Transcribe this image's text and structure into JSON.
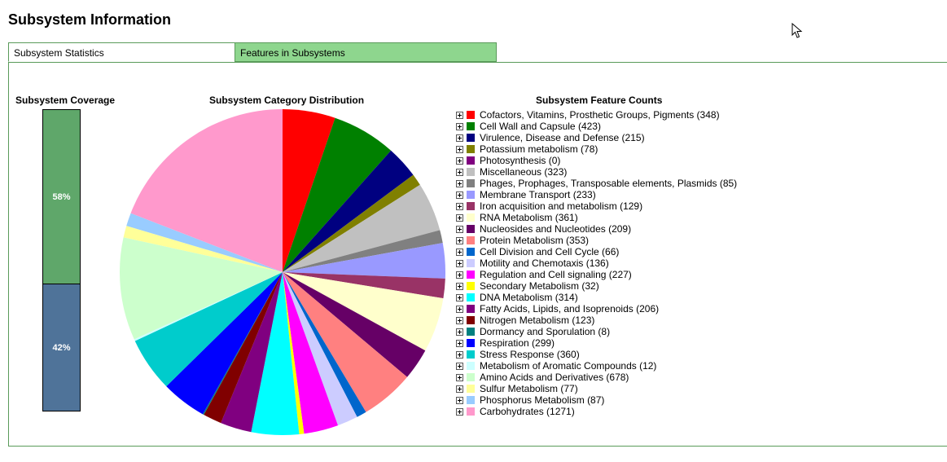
{
  "page": {
    "title": "Subsystem Information"
  },
  "tabs": [
    {
      "label": "Subsystem Statistics",
      "active": true
    },
    {
      "label": "Features in Subsystems",
      "active": false
    }
  ],
  "coverage": {
    "title": "Subsystem Coverage",
    "segments": [
      {
        "label": "58%",
        "value": 58,
        "color": "#5fa76a"
      },
      {
        "label": "42%",
        "value": 42,
        "color": "#4f7399"
      }
    ]
  },
  "distribution": {
    "title": "Subsystem Category Distribution"
  },
  "feature_counts": {
    "title": "Subsystem Feature Counts",
    "items": [
      {
        "label": "Cofactors, Vitamins, Prosthetic Groups, Pigments (348)",
        "name": "Cofactors, Vitamins, Prosthetic Groups, Pigments",
        "count": 348,
        "color": "#ff0000"
      },
      {
        "label": "Cell Wall and Capsule (423)",
        "name": "Cell Wall and Capsule",
        "count": 423,
        "color": "#008000"
      },
      {
        "label": "Virulence, Disease and Defense (215)",
        "name": "Virulence, Disease and Defense",
        "count": 215,
        "color": "#000080"
      },
      {
        "label": "Potassium metabolism (78)",
        "name": "Potassium metabolism",
        "count": 78,
        "color": "#808000"
      },
      {
        "label": "Photosynthesis (0)",
        "name": "Photosynthesis",
        "count": 0,
        "color": "#800080"
      },
      {
        "label": "Miscellaneous (323)",
        "name": "Miscellaneous",
        "count": 323,
        "color": "#c0c0c0"
      },
      {
        "label": "Phages, Prophages, Transposable elements, Plasmids (85)",
        "name": "Phages, Prophages, Transposable elements, Plasmids",
        "count": 85,
        "color": "#808080"
      },
      {
        "label": "Membrane Transport (233)",
        "name": "Membrane Transport",
        "count": 233,
        "color": "#9999ff"
      },
      {
        "label": "Iron acquisition and metabolism (129)",
        "name": "Iron acquisition and metabolism",
        "count": 129,
        "color": "#993366"
      },
      {
        "label": "RNA Metabolism (361)",
        "name": "RNA Metabolism",
        "count": 361,
        "color": "#ffffcc"
      },
      {
        "label": "Nucleosides and Nucleotides (209)",
        "name": "Nucleosides and Nucleotides",
        "count": 209,
        "color": "#660066"
      },
      {
        "label": "Protein Metabolism (353)",
        "name": "Protein Metabolism",
        "count": 353,
        "color": "#ff8080"
      },
      {
        "label": "Cell Division and Cell Cycle (66)",
        "name": "Cell Division and Cell Cycle",
        "count": 66,
        "color": "#0066cc"
      },
      {
        "label": "Motility and Chemotaxis (136)",
        "name": "Motility and Chemotaxis",
        "count": 136,
        "color": "#ccccff"
      },
      {
        "label": "Regulation and Cell signaling (227)",
        "name": "Regulation and Cell signaling",
        "count": 227,
        "color": "#ff00ff"
      },
      {
        "label": "Secondary Metabolism (32)",
        "name": "Secondary Metabolism",
        "count": 32,
        "color": "#ffff00"
      },
      {
        "label": "DNA Metabolism (314)",
        "name": "DNA Metabolism",
        "count": 314,
        "color": "#00ffff"
      },
      {
        "label": "Fatty Acids, Lipids, and Isoprenoids (206)",
        "name": "Fatty Acids, Lipids, and Isoprenoids",
        "count": 206,
        "color": "#800080"
      },
      {
        "label": "Nitrogen Metabolism (123)",
        "name": "Nitrogen Metabolism",
        "count": 123,
        "color": "#800000"
      },
      {
        "label": "Dormancy and Sporulation (8)",
        "name": "Dormancy and Sporulation",
        "count": 8,
        "color": "#008080"
      },
      {
        "label": "Respiration (299)",
        "name": "Respiration",
        "count": 299,
        "color": "#0000ff"
      },
      {
        "label": "Stress Response (360)",
        "name": "Stress Response",
        "count": 360,
        "color": "#00cccc"
      },
      {
        "label": "Metabolism of Aromatic Compounds (12)",
        "name": "Metabolism of Aromatic Compounds",
        "count": 12,
        "color": "#ccffff"
      },
      {
        "label": "Amino Acids and Derivatives (678)",
        "name": "Amino Acids and Derivatives",
        "count": 678,
        "color": "#ccffcc"
      },
      {
        "label": "Sulfur Metabolism (77)",
        "name": "Sulfur Metabolism",
        "count": 77,
        "color": "#ffff99"
      },
      {
        "label": "Phosphorus Metabolism (87)",
        "name": "Phosphorus Metabolism",
        "count": 87,
        "color": "#99ccff"
      },
      {
        "label": "Carbohydrates (1271)",
        "name": "Carbohydrates",
        "count": 1271,
        "color": "#ff99cc"
      }
    ]
  },
  "chart_data": [
    {
      "type": "bar",
      "title": "Subsystem Coverage",
      "categories": [
        "58%",
        "42%"
      ],
      "values": [
        58,
        42
      ],
      "ylim": [
        0,
        100
      ]
    },
    {
      "type": "pie",
      "title": "Subsystem Category Distribution",
      "categories": [
        "Cofactors, Vitamins, Prosthetic Groups, Pigments",
        "Cell Wall and Capsule",
        "Virulence, Disease and Defense",
        "Potassium metabolism",
        "Photosynthesis",
        "Miscellaneous",
        "Phages, Prophages, Transposable elements, Plasmids",
        "Membrane Transport",
        "Iron acquisition and metabolism",
        "RNA Metabolism",
        "Nucleosides and Nucleotides",
        "Protein Metabolism",
        "Cell Division and Cell Cycle",
        "Motility and Chemotaxis",
        "Regulation and Cell signaling",
        "Secondary Metabolism",
        "DNA Metabolism",
        "Fatty Acids, Lipids, and Isoprenoids",
        "Nitrogen Metabolism",
        "Dormancy and Sporulation",
        "Respiration",
        "Stress Response",
        "Metabolism of Aromatic Compounds",
        "Amino Acids and Derivatives",
        "Sulfur Metabolism",
        "Phosphorus Metabolism",
        "Carbohydrates"
      ],
      "values": [
        348,
        423,
        215,
        78,
        0,
        323,
        85,
        233,
        129,
        361,
        209,
        353,
        66,
        136,
        227,
        32,
        314,
        206,
        123,
        8,
        299,
        360,
        12,
        678,
        77,
        87,
        1271
      ],
      "colors": [
        "#ff0000",
        "#008000",
        "#000080",
        "#808000",
        "#800080",
        "#c0c0c0",
        "#808080",
        "#9999ff",
        "#993366",
        "#ffffcc",
        "#660066",
        "#ff8080",
        "#0066cc",
        "#ccccff",
        "#ff00ff",
        "#ffff00",
        "#00ffff",
        "#800080",
        "#800000",
        "#008080",
        "#0000ff",
        "#00cccc",
        "#ccffff",
        "#ccffcc",
        "#ffff99",
        "#99ccff",
        "#ff99cc"
      ],
      "legend": "right"
    }
  ]
}
